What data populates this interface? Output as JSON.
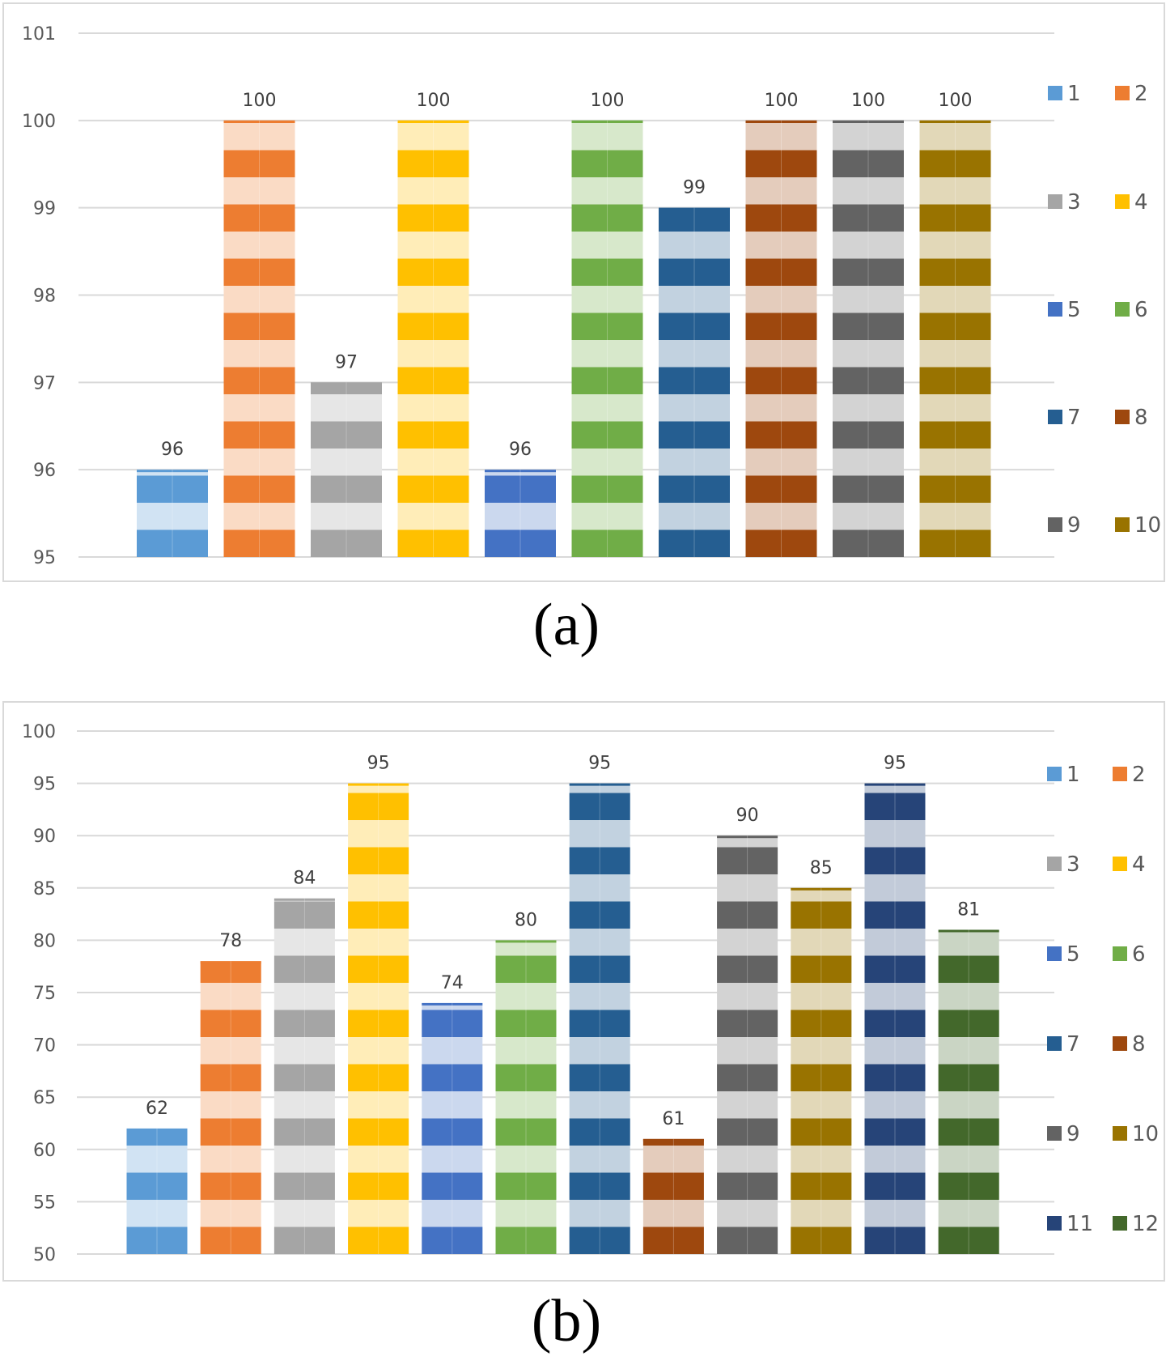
{
  "panels": [
    {
      "id": "a",
      "caption": "(a)",
      "chart_data": {
        "type": "bar",
        "categories": [
          "1",
          "2",
          "3",
          "4",
          "5",
          "6",
          "7",
          "8",
          "9",
          "10"
        ],
        "values": [
          96,
          100,
          97,
          100,
          96,
          100,
          99,
          100,
          100,
          100
        ],
        "data_labels": [
          "96",
          "100",
          "97",
          "100",
          "96",
          "100",
          "99",
          "100",
          "100",
          "100"
        ],
        "ylim": [
          95,
          101
        ],
        "yticks": [
          95,
          96,
          97,
          98,
          99,
          100,
          101
        ],
        "grid": true,
        "legend": {
          "placement": "right",
          "columns": 2,
          "entries": [
            "1",
            "2",
            "3",
            "4",
            "5",
            "6",
            "7",
            "8",
            "9",
            "10"
          ]
        },
        "colors": [
          "#5B9BD5",
          "#ED7D31",
          "#A5A5A5",
          "#FFC000",
          "#4472C4",
          "#70AD47",
          "#255E91",
          "#9E480E",
          "#636363",
          "#997300"
        ],
        "fill": "horizontal-stripes",
        "title": "",
        "xlabel": "",
        "ylabel": ""
      }
    },
    {
      "id": "b",
      "caption": "(b)",
      "chart_data": {
        "type": "bar",
        "categories": [
          "1",
          "2",
          "3",
          "4",
          "5",
          "6",
          "7",
          "8",
          "9",
          "10",
          "11",
          "12"
        ],
        "values": [
          62,
          78,
          84,
          95,
          74,
          80,
          95,
          61,
          90,
          85,
          95,
          81
        ],
        "data_labels": [
          "62",
          "78",
          "84",
          "95",
          "74",
          "80",
          "95",
          "61",
          "90",
          "85",
          "95",
          "81"
        ],
        "ylim": [
          50,
          100
        ],
        "yticks": [
          50,
          55,
          60,
          65,
          70,
          75,
          80,
          85,
          90,
          95,
          100
        ],
        "grid": true,
        "legend": {
          "placement": "right",
          "columns": 2,
          "entries": [
            "1",
            "2",
            "3",
            "4",
            "5",
            "6",
            "7",
            "8",
            "9",
            "10",
            "11",
            "12"
          ]
        },
        "colors": [
          "#5B9BD5",
          "#ED7D31",
          "#A5A5A5",
          "#FFC000",
          "#4472C4",
          "#70AD47",
          "#255E91",
          "#9E480E",
          "#636363",
          "#997300",
          "#264478",
          "#43682B"
        ],
        "fill": "horizontal-stripes",
        "title": "",
        "xlabel": "",
        "ylabel": ""
      }
    }
  ]
}
